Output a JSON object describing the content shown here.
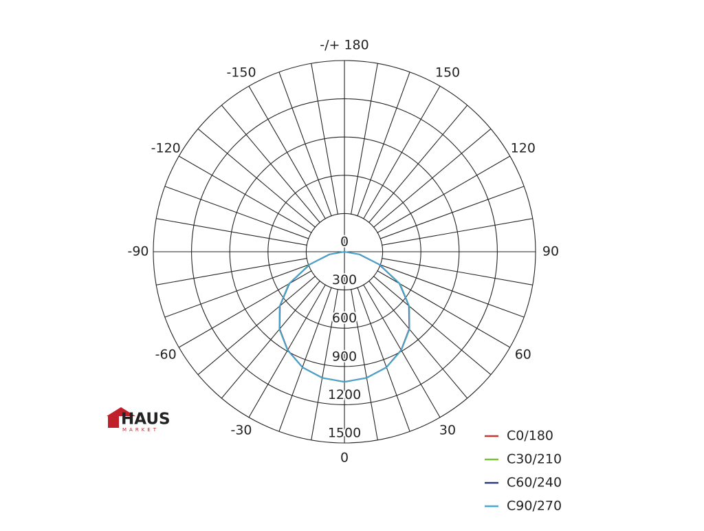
{
  "chart_data": {
    "type": "polar",
    "angle_ticks": [
      0,
      30,
      60,
      90,
      120,
      150,
      {
        "value": 180,
        "label": "-/+ 180"
      },
      -150,
      -120,
      -90,
      -60,
      -30
    ],
    "rlim": [
      0,
      1500
    ],
    "rticks": [
      0,
      300,
      600,
      900,
      1200,
      1500
    ],
    "x": [
      -90,
      -80,
      -70,
      -60,
      -50,
      -40,
      -30,
      -20,
      -10,
      0,
      10,
      20,
      30,
      40,
      50,
      60,
      70,
      80,
      90
    ],
    "series": [
      {
        "name": "C0/180",
        "color": "#c8372d",
        "values": [
          0,
          120,
          290,
          500,
          660,
          790,
          890,
          965,
          1005,
          1020,
          1005,
          965,
          890,
          790,
          660,
          500,
          290,
          120,
          0
        ]
      },
      {
        "name": "C30/210",
        "color": "#7dbf3f",
        "values": [
          0,
          125,
          295,
          505,
          665,
          795,
          893,
          966,
          1006,
          1022,
          1006,
          966,
          893,
          795,
          665,
          505,
          295,
          125,
          0
        ]
      },
      {
        "name": "C60/240",
        "color": "#2c3a78",
        "values": [
          0,
          118,
          288,
          498,
          662,
          792,
          891,
          964,
          1004,
          1021,
          1004,
          964,
          891,
          792,
          662,
          498,
          288,
          118,
          0
        ]
      },
      {
        "name": "C90/270",
        "color": "#45a8d8",
        "values": [
          0,
          122,
          292,
          502,
          664,
          793,
          892,
          966,
          1005,
          1021,
          1005,
          966,
          892,
          793,
          664,
          502,
          292,
          122,
          0
        ]
      }
    ],
    "legend": "lower right"
  },
  "logo": {
    "name": "HAUS",
    "tagline": "MARKET"
  }
}
